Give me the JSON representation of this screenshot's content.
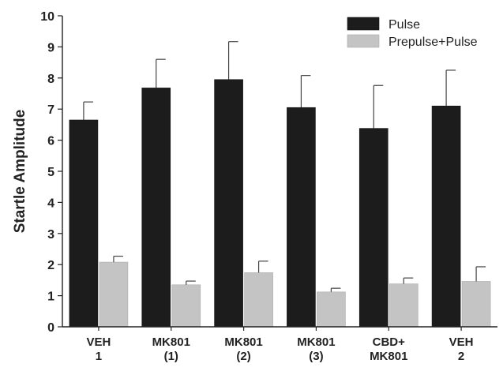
{
  "chart_data": {
    "type": "bar",
    "title": "",
    "xlabel": "",
    "ylabel": "Startle Amplitude",
    "ylim": [
      0,
      10
    ],
    "yticks": [
      "0",
      "1",
      "2",
      "3",
      "4",
      "5",
      "6",
      "7",
      "8",
      "9",
      "10"
    ],
    "grid": false,
    "legend_position": "top-right",
    "categories": [
      [
        "VEH",
        "1"
      ],
      [
        "MK801",
        "(1)"
      ],
      [
        "MK801",
        "(2)"
      ],
      [
        "MK801",
        "(3)"
      ],
      [
        "CBD+",
        "MK801"
      ],
      [
        "VEH",
        "2"
      ]
    ],
    "series": [
      {
        "name": "Pulse",
        "color": "#1c1c1c",
        "values": [
          6.65,
          7.68,
          7.95,
          7.05,
          6.38,
          7.1
        ],
        "errors": [
          0.58,
          0.92,
          1.22,
          1.03,
          1.38,
          1.15
        ]
      },
      {
        "name": "Prepulse+Pulse",
        "color": "#c4c4c4",
        "values": [
          2.08,
          1.35,
          1.74,
          1.12,
          1.38,
          1.46
        ],
        "errors": [
          0.19,
          0.12,
          0.37,
          0.12,
          0.19,
          0.47
        ]
      }
    ]
  }
}
